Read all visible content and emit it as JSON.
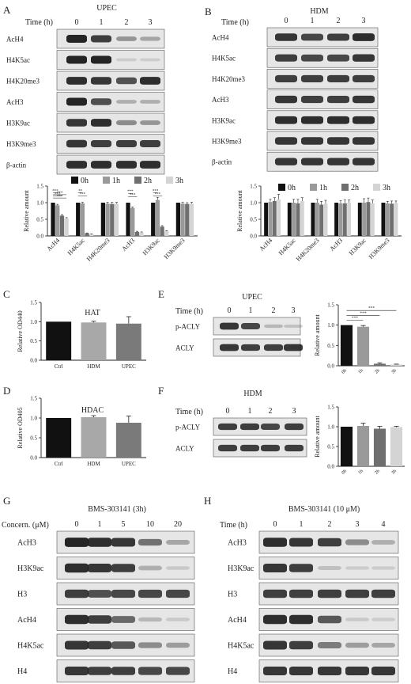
{
  "panels": {
    "A": {
      "letter": "A",
      "title": "UPEC",
      "time_label": "Time (h)",
      "times": [
        "0",
        "1",
        "2",
        "3"
      ],
      "blots": [
        {
          "label": "AcH4",
          "intensity": [
            1.0,
            0.85,
            0.35,
            0.25
          ]
        },
        {
          "label": "H4K5ac",
          "intensity": [
            1.0,
            1.0,
            0.03,
            0.03
          ]
        },
        {
          "label": "H4K20me3",
          "intensity": [
            0.95,
            0.9,
            0.75,
            0.95
          ]
        },
        {
          "label": "AcH3",
          "intensity": [
            1.0,
            0.75,
            0.2,
            0.2
          ]
        },
        {
          "label": "H3K9ac",
          "intensity": [
            0.9,
            0.95,
            0.4,
            0.35
          ]
        },
        {
          "label": "H3K9me3",
          "intensity": [
            0.9,
            0.85,
            0.85,
            0.85
          ]
        },
        {
          "label": "β-actin",
          "intensity": [
            0.95,
            0.95,
            0.95,
            0.95
          ]
        }
      ]
    },
    "B": {
      "letter": "B",
      "title": "HDM",
      "time_label": "Time (h)",
      "times": [
        "0",
        "1",
        "2",
        "3"
      ],
      "blots": [
        {
          "label": "AcH4",
          "intensity": [
            0.9,
            0.8,
            0.85,
            0.95
          ]
        },
        {
          "label": "H4K5ac",
          "intensity": [
            0.85,
            0.8,
            0.8,
            0.9
          ]
        },
        {
          "label": "H4K20me3",
          "intensity": [
            0.85,
            0.85,
            0.85,
            0.85
          ]
        },
        {
          "label": "AcH3",
          "intensity": [
            0.9,
            0.85,
            0.85,
            0.9
          ]
        },
        {
          "label": "H3K9ac",
          "intensity": [
            0.95,
            0.95,
            0.95,
            0.95
          ]
        },
        {
          "label": "H3K9me3",
          "intensity": [
            0.9,
            0.9,
            0.9,
            0.9
          ]
        },
        {
          "label": "β-actin",
          "intensity": [
            0.9,
            0.9,
            0.9,
            0.9
          ]
        }
      ]
    },
    "C": {
      "letter": "C"
    },
    "D": {
      "letter": "D"
    },
    "E": {
      "letter": "E",
      "title": "UPEC",
      "time_label": "Time (h)",
      "times": [
        "0",
        "1",
        "2",
        "3"
      ],
      "blots": [
        {
          "label": "p-ACLY",
          "intensity": [
            0.9,
            0.8,
            0.15,
            0.1
          ]
        },
        {
          "label": "ACLY",
          "intensity": [
            0.9,
            0.85,
            0.85,
            0.9
          ]
        }
      ]
    },
    "F": {
      "letter": "F",
      "title": "HDM",
      "time_label": "Time (h)",
      "times": [
        "0",
        "1",
        "2",
        "3"
      ],
      "blots": [
        {
          "label": "p-ACLY",
          "intensity": [
            0.85,
            0.85,
            0.8,
            0.85
          ]
        },
        {
          "label": "ACLY",
          "intensity": [
            0.85,
            0.85,
            0.85,
            0.85
          ]
        }
      ]
    },
    "G": {
      "letter": "G",
      "title": "BMS-303141 (3h)",
      "time_label": "Concern. (μM)",
      "times": [
        "0",
        "1",
        "5",
        "10",
        "20"
      ],
      "blots": [
        {
          "label": "AcH3",
          "intensity": [
            1.0,
            0.95,
            0.9,
            0.55,
            0.25
          ]
        },
        {
          "label": "H3K9ac",
          "intensity": [
            0.95,
            0.9,
            0.85,
            0.2,
            0.05
          ]
        },
        {
          "label": "H3",
          "intensity": [
            0.85,
            0.75,
            0.8,
            0.8,
            0.8
          ]
        },
        {
          "label": "AcH4",
          "intensity": [
            0.95,
            0.85,
            0.6,
            0.15,
            0.05
          ]
        },
        {
          "label": "H4K5ac",
          "intensity": [
            0.9,
            0.85,
            0.7,
            0.4,
            0.3
          ]
        },
        {
          "label": "H4",
          "intensity": [
            0.9,
            0.85,
            0.85,
            0.8,
            0.8
          ]
        }
      ]
    },
    "H": {
      "letter": "H",
      "title": "BMS-303141 (10 μM)",
      "time_label": "Time (h)",
      "times": [
        "0",
        "1",
        "2",
        "3",
        "4"
      ],
      "blots": [
        {
          "label": "AcH3",
          "intensity": [
            0.95,
            0.9,
            0.85,
            0.4,
            0.2
          ]
        },
        {
          "label": "H3K9ac",
          "intensity": [
            0.9,
            0.85,
            0.1,
            0.03,
            0.03
          ]
        },
        {
          "label": "H3",
          "intensity": [
            0.85,
            0.85,
            0.85,
            0.85,
            0.85
          ]
        },
        {
          "label": "AcH4",
          "intensity": [
            0.95,
            0.95,
            0.7,
            0.05,
            0.03
          ]
        },
        {
          "label": "H4K5ac",
          "intensity": [
            0.9,
            0.85,
            0.5,
            0.3,
            0.25
          ]
        },
        {
          "label": "H4",
          "intensity": [
            0.9,
            0.9,
            0.9,
            0.9,
            0.9
          ]
        }
      ]
    }
  },
  "colors": {
    "0h": "#111111",
    "1h": "#9a9a9a",
    "2h": "#6f6f6f",
    "3h": "#d4d4d4",
    "Ctrl": "#111111",
    "HDM": "#a8a8a8",
    "UPEC": "#7a7a7a",
    "band": "#1a1a1a",
    "blot_bg": "#e6e6e6"
  },
  "chart_data": [
    {
      "type": "bar",
      "panel": "A",
      "categories": [
        "AcH4",
        "H4K5ac",
        "H4K20me3",
        "AcH3",
        "H3K9ac",
        "H3K9me3"
      ],
      "series": [
        {
          "name": "0h",
          "values": [
            1.0,
            1.0,
            1.0,
            1.0,
            1.0,
            1.0
          ],
          "errors": [
            0,
            0,
            0,
            0,
            0,
            0
          ]
        },
        {
          "name": "1h",
          "values": [
            0.92,
            0.98,
            0.97,
            0.84,
            1.08,
            0.97
          ],
          "errors": [
            0.03,
            0.03,
            0.04,
            0.03,
            0.08,
            0.04
          ]
        },
        {
          "name": "2h",
          "values": [
            0.61,
            0.08,
            0.96,
            0.12,
            0.28,
            0.96
          ],
          "errors": [
            0.03,
            0.01,
            0.05,
            0.02,
            0.03,
            0.04
          ]
        },
        {
          "name": "3h",
          "values": [
            0.52,
            0.05,
            0.97,
            0.1,
            0.14,
            0.97
          ],
          "errors": [
            0.03,
            0.01,
            0.04,
            0.02,
            0.02,
            0.04
          ]
        }
      ],
      "significance": [
        "***",
        "***",
        "***",
        "***",
        "**",
        "***",
        "***",
        "***",
        "***",
        "***"
      ],
      "ylabel": "Relative amount",
      "ylim": [
        0,
        1.5
      ],
      "yticks": [
        "0.0",
        "0.5",
        "1.0",
        "1.5"
      ],
      "legend": "top"
    },
    {
      "type": "bar",
      "panel": "B",
      "categories": [
        "AcH4",
        "H4K5ac",
        "H4K20me3",
        "AcH3",
        "H3K9ac",
        "H3K9me3"
      ],
      "series": [
        {
          "name": "0h",
          "values": [
            1.0,
            1.0,
            1.0,
            1.0,
            1.0,
            1.0
          ],
          "errors": [
            0,
            0,
            0,
            0,
            0,
            0
          ]
        },
        {
          "name": "1h",
          "values": [
            1.02,
            1.0,
            1.0,
            0.98,
            1.0,
            0.98
          ],
          "errors": [
            0.08,
            0.1,
            0.1,
            0.08,
            0.12,
            0.06
          ]
        },
        {
          "name": "2h",
          "values": [
            1.05,
            0.98,
            0.94,
            0.98,
            1.02,
            0.97
          ],
          "errors": [
            0.1,
            0.12,
            0.1,
            0.1,
            0.12,
            0.08
          ]
        },
        {
          "name": "3h",
          "values": [
            1.1,
            1.05,
            0.97,
            1.0,
            0.98,
            0.99
          ],
          "errors": [
            0.15,
            0.1,
            0.1,
            0.08,
            0.1,
            0.06
          ]
        }
      ],
      "ylabel": "Relative amount",
      "ylim": [
        0,
        1.5
      ],
      "yticks": [
        "0.0",
        "0.5",
        "1.0",
        "1.5"
      ],
      "legend": "top"
    },
    {
      "type": "bar",
      "panel": "C",
      "title": "HAT",
      "categories": [
        "Ctrl",
        "HDM",
        "UPEC"
      ],
      "values": [
        1.0,
        0.98,
        0.95
      ],
      "errors": [
        0,
        0.03,
        0.18
      ],
      "ylabel": "Relative OD440",
      "ylim": [
        0,
        1.5
      ],
      "yticks": [
        "0.0",
        "0.5",
        "1.0",
        "1.5"
      ]
    },
    {
      "type": "bar",
      "panel": "D",
      "title": "HDAC",
      "categories": [
        "Ctrl",
        "HDM",
        "UPEC"
      ],
      "values": [
        1.0,
        1.02,
        0.88
      ],
      "errors": [
        0,
        0.04,
        0.17
      ],
      "ylabel": "Relative OD405",
      "ylim": [
        0,
        1.5
      ],
      "yticks": [
        "0.0",
        "0.5",
        "1.0",
        "1.5"
      ]
    },
    {
      "type": "bar",
      "panel": "E",
      "categories": [
        "0h",
        "1h",
        "2h",
        "3h"
      ],
      "values": [
        1.0,
        0.96,
        0.05,
        0.03
      ],
      "errors": [
        0,
        0.03,
        0.02,
        0.01
      ],
      "significance": [
        "***",
        "***",
        "***"
      ],
      "ylabel": "Relative amount",
      "ylim": [
        0,
        1.5
      ],
      "yticks": [
        "0.0",
        "0.5",
        "1.0",
        "1.5"
      ]
    },
    {
      "type": "bar",
      "panel": "F",
      "categories": [
        "0h",
        "1h",
        "2h",
        "3h"
      ],
      "values": [
        1.0,
        1.02,
        0.95,
        0.99
      ],
      "errors": [
        0,
        0.07,
        0.06,
        0.02
      ],
      "ylabel": "Relative amount",
      "ylim": [
        0,
        1.5
      ],
      "yticks": [
        "0.0",
        "0.5",
        "1.0",
        "1.5"
      ]
    }
  ]
}
